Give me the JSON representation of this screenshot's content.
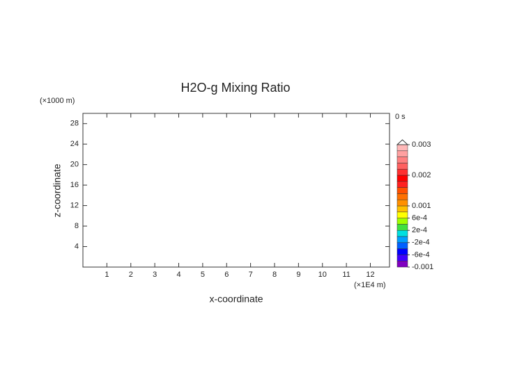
{
  "chart_data": {
    "type": "contour",
    "title": "H2O-g Mixing Ratio",
    "x_label": "x-coordinate",
    "y_label": "z-coordinate",
    "x_unit": "(×1E4 m)",
    "y_unit": "(×1000 m)",
    "time_label": "0 s",
    "xlim": [
      0,
      12.8
    ],
    "xticks": [
      1,
      2,
      3,
      4,
      5,
      6,
      7,
      8,
      9,
      10,
      11,
      12
    ],
    "ylim": [
      0,
      30
    ],
    "yticks": [
      4,
      8,
      12,
      16,
      20,
      24,
      28
    ],
    "colorbar": {
      "lim": [
        -0.001,
        0.003
      ],
      "levels": [
        -0.001,
        -0.0008,
        -0.0006,
        -0.0004,
        -0.0002,
        0,
        0.0002,
        0.0004,
        0.0006,
        0.0008,
        0.001,
        0.0012,
        0.0014,
        0.0016,
        0.0018,
        0.002,
        0.0022,
        0.0024,
        0.0026,
        0.0028,
        0.003
      ],
      "colors": [
        "#8000c0",
        "#4000ff",
        "#0000ff",
        "#0060ff",
        "#00a0ff",
        "#00e0e0",
        "#40e040",
        "#a0ff00",
        "#ffff00",
        "#ffc000",
        "#ff9000",
        "#ff7000",
        "#ff5000",
        "#ff2020",
        "#ff0000",
        "#ff3030",
        "#ff6060",
        "#ff8080",
        "#ffa0a0",
        "#ffb8b8"
      ],
      "extend_color": "#ffffff",
      "ticks": [
        -0.001,
        {
          "value": -0.0006,
          "label": "-6e-4"
        },
        {
          "value": -0.0002,
          "label": "-2e-4"
        },
        {
          "value": 0.0002,
          "label": "2e-4"
        },
        {
          "value": 0.0006,
          "label": "6e-4"
        },
        0.001,
        0.002,
        0.003
      ]
    }
  }
}
